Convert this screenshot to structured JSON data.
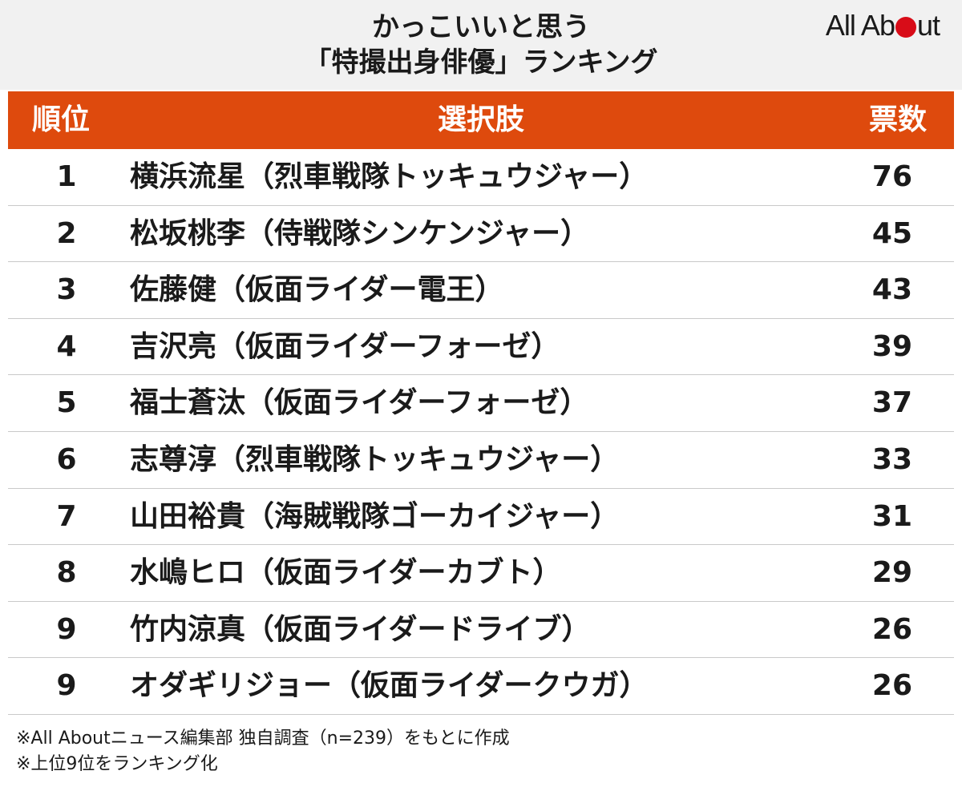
{
  "title": {
    "line1": "かっこいいと思う",
    "line2": "「特撮出身俳優」ランキング"
  },
  "logo": {
    "text_before": "All Ab",
    "text_after": "ut",
    "dot_color": "#d80c18"
  },
  "colors": {
    "header_bg": "#de4a0d",
    "title_bg": "#f1f1f1"
  },
  "table": {
    "headers": {
      "rank": "順位",
      "choice": "選択肢",
      "votes": "票数"
    },
    "rows": [
      {
        "rank": "1",
        "choice": "横浜流星（烈車戦隊トッキュウジャー）",
        "votes": "76"
      },
      {
        "rank": "2",
        "choice": "松坂桃李（侍戦隊シンケンジャー）",
        "votes": "45"
      },
      {
        "rank": "3",
        "choice": "佐藤健（仮面ライダー電王）",
        "votes": "43"
      },
      {
        "rank": "4",
        "choice": "吉沢亮（仮面ライダーフォーゼ）",
        "votes": "39"
      },
      {
        "rank": "5",
        "choice": "福士蒼汰（仮面ライダーフォーゼ）",
        "votes": "37"
      },
      {
        "rank": "6",
        "choice": "志尊淳（烈車戦隊トッキュウジャー）",
        "votes": "33"
      },
      {
        "rank": "7",
        "choice": "山田裕貴（海賊戦隊ゴーカイジャー）",
        "votes": "31"
      },
      {
        "rank": "8",
        "choice": "水嶋ヒロ（仮面ライダーカブト）",
        "votes": "29"
      },
      {
        "rank": "9",
        "choice": "竹内涼真（仮面ライダードライブ）",
        "votes": "26"
      },
      {
        "rank": "9",
        "choice": "オダギリジョー（仮面ライダークウガ）",
        "votes": "26"
      }
    ]
  },
  "notes": {
    "line1": "※All Aboutニュース編集部 独自調査（n=239）をもとに作成",
    "line2": "※上位9位をランキング化"
  }
}
